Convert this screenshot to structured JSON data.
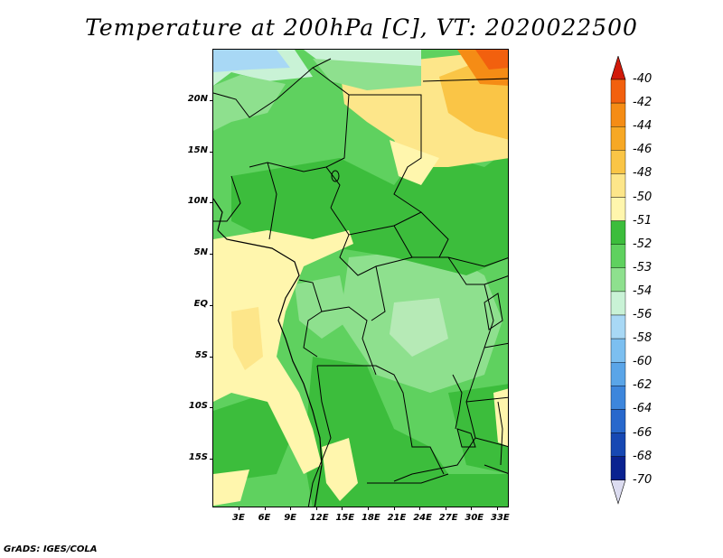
{
  "title": "Temperature at 200hPa [C], VT: 2020022500",
  "footer": "GrADS: IGES/COLA",
  "lat_labels": [
    "20N",
    "15N",
    "10N",
    "5N",
    "EQ",
    "5S",
    "10S",
    "15S"
  ],
  "lon_labels": [
    "3E",
    "6E",
    "9E",
    "12E",
    "15E",
    "18E",
    "21E",
    "24E",
    "27E",
    "30E",
    "33E"
  ],
  "colorbar": {
    "labels": [
      "-40",
      "-42",
      "-44",
      "-46",
      "-48",
      "-50",
      "-51",
      "-52",
      "-53",
      "-54",
      "-56",
      "-58",
      "-60",
      "-62",
      "-64",
      "-66",
      "-68",
      "-70"
    ],
    "colors": [
      "#e8300a",
      "#f2600e",
      "#f58c15",
      "#f7a825",
      "#fac546",
      "#fde68a",
      "#fff6ad",
      "#3cbd3c",
      "#5fd15f",
      "#8ee08e",
      "#c9f2d6",
      "#a8d8f5",
      "#7cbff0",
      "#5aa5e8",
      "#3d86dc",
      "#2868cc",
      "#1748b3",
      "#0a2290",
      "#06106b"
    ],
    "top_arrow_color": "#d11a0a",
    "bottom_arrow_color": "#dcdcf0"
  },
  "map_colors": {
    "y50": "#fff6ad",
    "y48": "#fde68a",
    "o46": "#fac546",
    "o44": "#f58c15",
    "r42": "#f2600e",
    "g52": "#3cbd3c",
    "g53": "#5fd15f",
    "g54": "#8ee08e",
    "c56": "#c9f2d6",
    "b58": "#a8d8f5"
  }
}
